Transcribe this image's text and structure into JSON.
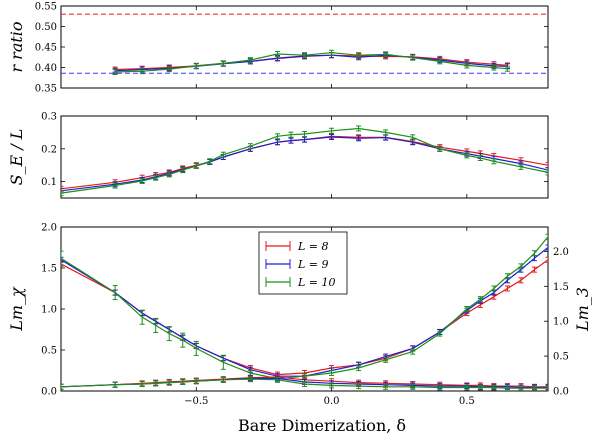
{
  "figure": {
    "xlabel": "Bare Dimerization, δ"
  },
  "colors": {
    "L8": "#e41a1c",
    "L9": "#1f1fcc",
    "L10": "#1a8f1a"
  },
  "legend": {
    "entries": [
      "L = 8",
      "L = 9",
      "L = 10"
    ],
    "placement": "top-center of bottom panel"
  },
  "chart_data": [
    {
      "type": "line",
      "panel": "r ratio",
      "ylabel": "r ratio",
      "xlim": [
        -1.0,
        0.8
      ],
      "ylim": [
        0.35,
        0.55
      ],
      "yticks": [
        0.35,
        0.4,
        0.45,
        0.5,
        0.55
      ],
      "xticks": [
        -0.5,
        0.0,
        0.5
      ],
      "hlines": [
        {
          "y": 0.53,
          "color": "red",
          "style": "dashed"
        },
        {
          "y": 0.386,
          "color": "blue",
          "style": "dashed"
        }
      ],
      "x": [
        -0.8,
        -0.7,
        -0.6,
        -0.5,
        -0.4,
        -0.3,
        -0.2,
        -0.1,
        0.0,
        0.1,
        0.2,
        0.3,
        0.4,
        0.5,
        0.6,
        0.65
      ],
      "series": [
        {
          "name": "L = 8",
          "color": "#e41a1c",
          "values": [
            0.395,
            0.397,
            0.4,
            0.404,
            0.41,
            0.415,
            0.422,
            0.427,
            0.43,
            0.428,
            0.427,
            0.426,
            0.421,
            0.413,
            0.408,
            0.405
          ]
        },
        {
          "name": "L = 9",
          "color": "#1f1fcc",
          "values": [
            0.392,
            0.395,
            0.398,
            0.403,
            0.409,
            0.415,
            0.423,
            0.428,
            0.43,
            0.425,
            0.43,
            0.425,
            0.418,
            0.41,
            0.404,
            0.403
          ]
        },
        {
          "name": "L = 10",
          "color": "#1a8f1a",
          "values": [
            0.389,
            0.391,
            0.396,
            0.404,
            0.41,
            0.418,
            0.433,
            0.43,
            0.436,
            0.43,
            0.432,
            0.424,
            0.415,
            0.405,
            0.4,
            0.397
          ]
        }
      ]
    },
    {
      "type": "line",
      "panel": "SE/L",
      "ylabel": "S_E / L",
      "xlim": [
        -1.0,
        0.8
      ],
      "ylim": [
        0.05,
        0.3
      ],
      "yticks": [
        0.1,
        0.2,
        0.3
      ],
      "xticks": [
        -0.5,
        0.0,
        0.5
      ],
      "x": [
        -1.0,
        -0.8,
        -0.7,
        -0.65,
        -0.6,
        -0.55,
        -0.5,
        -0.45,
        -0.4,
        -0.3,
        -0.2,
        -0.15,
        -0.1,
        0.0,
        0.1,
        0.2,
        0.3,
        0.4,
        0.5,
        0.55,
        0.6,
        0.7,
        0.8
      ],
      "series": [
        {
          "name": "L = 8",
          "color": "#e41a1c",
          "values": [
            0.078,
            0.098,
            0.112,
            0.12,
            0.128,
            0.14,
            0.15,
            0.16,
            0.175,
            0.2,
            0.22,
            0.225,
            0.228,
            0.238,
            0.235,
            0.235,
            0.222,
            0.205,
            0.192,
            0.186,
            0.178,
            0.165,
            0.15
          ]
        },
        {
          "name": "L = 9",
          "color": "#1f1fcc",
          "values": [
            0.072,
            0.092,
            0.105,
            0.115,
            0.125,
            0.137,
            0.148,
            0.16,
            0.175,
            0.2,
            0.22,
            0.225,
            0.228,
            0.236,
            0.232,
            0.234,
            0.22,
            0.2,
            0.185,
            0.178,
            0.17,
            0.155,
            0.135
          ]
        },
        {
          "name": "L = 10",
          "color": "#1a8f1a",
          "values": [
            0.065,
            0.088,
            0.102,
            0.112,
            0.122,
            0.135,
            0.148,
            0.162,
            0.182,
            0.208,
            0.238,
            0.243,
            0.245,
            0.255,
            0.262,
            0.25,
            0.235,
            0.2,
            0.18,
            0.172,
            0.162,
            0.145,
            0.128
          ]
        }
      ]
    },
    {
      "type": "line",
      "panel": "Lm_chi",
      "ylabel": "Lm_χ",
      "ylabel_right": "Lm_3",
      "xlim": [
        -1.0,
        0.8
      ],
      "ylim": [
        0.0,
        2.0
      ],
      "yticks": [
        0.0,
        0.5,
        1.0,
        1.5,
        2.0
      ],
      "yticks_right": [
        0.0,
        0.5,
        1.0,
        1.5,
        2.0
      ],
      "xticks": [
        -0.5,
        0.0,
        0.5
      ],
      "x": [
        -1.0,
        -0.8,
        -0.7,
        -0.65,
        -0.6,
        -0.55,
        -0.5,
        -0.4,
        -0.3,
        -0.2,
        -0.1,
        0.0,
        0.1,
        0.2,
        0.3,
        0.4,
        0.5,
        0.55,
        0.6,
        0.65,
        0.7,
        0.75,
        0.8
      ],
      "series": [
        {
          "name": "L = 8",
          "color": "#e41a1c",
          "values": [
            1.55,
            1.2,
            0.95,
            0.85,
            0.75,
            0.65,
            0.55,
            0.4,
            0.28,
            0.2,
            0.22,
            0.28,
            0.32,
            0.4,
            0.52,
            0.72,
            0.95,
            1.05,
            1.15,
            1.25,
            1.35,
            1.48,
            1.6
          ]
        },
        {
          "name": "L = 9",
          "color": "#1f1fcc",
          "values": [
            1.6,
            1.2,
            0.95,
            0.85,
            0.75,
            0.65,
            0.55,
            0.4,
            0.26,
            0.18,
            0.18,
            0.25,
            0.32,
            0.42,
            0.52,
            0.72,
            0.98,
            1.1,
            1.2,
            1.35,
            1.48,
            1.62,
            1.75
          ]
        },
        {
          "name": "L = 10",
          "color": "#1a8f1a",
          "values": [
            1.62,
            1.2,
            0.9,
            0.8,
            0.7,
            0.62,
            0.52,
            0.35,
            0.22,
            0.15,
            0.18,
            0.22,
            0.28,
            0.38,
            0.48,
            0.7,
            1.0,
            1.12,
            1.25,
            1.4,
            1.52,
            1.68,
            1.88
          ]
        },
        {
          "name": "Lm3 L = 8",
          "axis": "right",
          "color": "#e41a1c",
          "values": [
            0.06,
            0.09,
            0.11,
            0.12,
            0.13,
            0.14,
            0.15,
            0.17,
            0.19,
            0.2,
            0.16,
            0.14,
            0.12,
            0.11,
            0.1,
            0.09,
            0.08,
            0.08,
            0.07,
            0.07,
            0.07,
            0.06,
            0.06
          ]
        },
        {
          "name": "Lm3 L = 9",
          "axis": "right",
          "color": "#1f1fcc",
          "values": [
            0.06,
            0.09,
            0.1,
            0.11,
            0.12,
            0.13,
            0.14,
            0.16,
            0.18,
            0.18,
            0.13,
            0.11,
            0.1,
            0.09,
            0.08,
            0.07,
            0.07,
            0.06,
            0.06,
            0.06,
            0.05,
            0.05,
            0.05
          ]
        },
        {
          "name": "Lm3 L = 10",
          "axis": "right",
          "color": "#1a8f1a",
          "values": [
            0.06,
            0.09,
            0.1,
            0.11,
            0.12,
            0.13,
            0.14,
            0.16,
            0.17,
            0.16,
            0.1,
            0.08,
            0.07,
            0.06,
            0.06,
            0.05,
            0.05,
            0.05,
            0.05,
            0.04,
            0.04,
            0.04,
            0.04
          ]
        }
      ]
    }
  ]
}
